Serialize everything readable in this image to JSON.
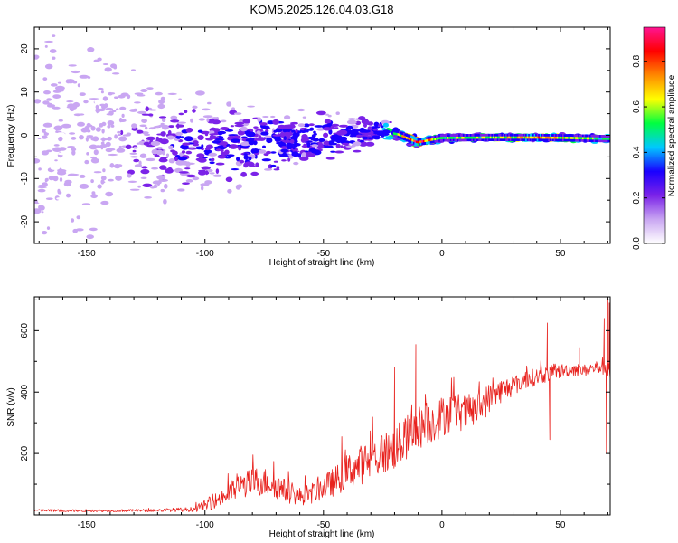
{
  "figure_title": "KOM5.2025.126.04.03.G18",
  "chart_data": [
    {
      "type": "heatmap",
      "title": "KOM5.2025.126.04.03.G18",
      "xlabel": "Height of straight line (km)",
      "ylabel": "Frequency (Hz)",
      "xlim": [
        -172,
        71
      ],
      "ylim": [
        -25,
        25
      ],
      "x_ticks": [
        -150,
        -100,
        -50,
        0,
        50
      ],
      "y_ticks": [
        -20,
        -10,
        0,
        10,
        20
      ],
      "x_tick_labels": [
        "-150",
        "-100",
        "-50",
        "0",
        "50"
      ],
      "y_tick_labels": [
        "-20",
        "-10",
        "0",
        "10",
        "20"
      ],
      "grid": false,
      "colorbar": {
        "label": "Normalized spectral amplitude",
        "range": [
          0,
          0.95
        ],
        "ticks": [
          0.0,
          0.2,
          0.4,
          0.6,
          0.8
        ],
        "tick_labels": [
          "0.0",
          "0.2",
          "0.4",
          "0.6",
          "0.8"
        ],
        "colors": [
          "#ffffff",
          "#c9a6f2",
          "#7b22e8",
          "#1a00ff",
          "#00c8ff",
          "#00ff40",
          "#ffff00",
          "#ff8800",
          "#ff0000",
          "#ff1493"
        ]
      },
      "ridge": [
        {
          "x": -172,
          "y": 0,
          "spread": 24,
          "amp": 0.08
        },
        {
          "x": -140,
          "y": 0,
          "spread": 18,
          "amp": 0.1
        },
        {
          "x": -110,
          "y": -3,
          "spread": 9,
          "amp": 0.22
        },
        {
          "x": -80,
          "y": -2,
          "spread": 7,
          "amp": 0.28
        },
        {
          "x": -60,
          "y": -1,
          "spread": 5,
          "amp": 0.3
        },
        {
          "x": -40,
          "y": 0,
          "spread": 3.5,
          "amp": 0.32
        },
        {
          "x": -25,
          "y": 1,
          "spread": 2.5,
          "amp": 0.38
        },
        {
          "x": -18,
          "y": 0.2,
          "spread": 1.2,
          "amp": 0.55
        },
        {
          "x": -10,
          "y": -1.6,
          "spread": 0.8,
          "amp": 0.85
        },
        {
          "x": 0,
          "y": -0.6,
          "spread": 0.9,
          "amp": 0.5
        },
        {
          "x": 20,
          "y": -0.5,
          "spread": 0.8,
          "amp": 0.55
        },
        {
          "x": 40,
          "y": -0.5,
          "spread": 0.8,
          "amp": 0.7
        },
        {
          "x": 55,
          "y": -0.6,
          "spread": 0.8,
          "amp": 0.58
        },
        {
          "x": 71,
          "y": -0.8,
          "spread": 0.8,
          "amp": 0.45
        }
      ]
    },
    {
      "type": "line",
      "xlabel": "Height of straight line (km)",
      "ylabel": "SNR (v/v)",
      "xlim": [
        -172,
        71
      ],
      "ylim": [
        0,
        710
      ],
      "x_ticks": [
        -150,
        -100,
        -50,
        0,
        50
      ],
      "y_ticks": [
        200,
        400,
        600
      ],
      "x_tick_labels": [
        "-150",
        "-100",
        "-50",
        "0",
        "50"
      ],
      "y_tick_labels": [
        "200",
        "400",
        "600"
      ],
      "grid": false,
      "series": [
        {
          "color": "#e8221e",
          "x": [
            -172,
            -160,
            -140,
            -120,
            -105,
            -100,
            -92,
            -85,
            -78,
            -72,
            -66,
            -60,
            -55,
            -50,
            -45,
            -40,
            -35,
            -30,
            -25,
            -20,
            -15,
            -10,
            -5,
            0,
            5,
            10,
            15,
            20,
            25,
            30,
            35,
            40,
            45,
            50,
            55,
            60,
            65,
            68,
            70,
            71
          ],
          "y": [
            15,
            14,
            14,
            15,
            18,
            30,
            60,
            95,
            110,
            105,
            78,
            60,
            70,
            90,
            110,
            140,
            160,
            180,
            200,
            215,
            250,
            285,
            300,
            320,
            340,
            330,
            345,
            380,
            405,
            420,
            440,
            450,
            460,
            468,
            475,
            470,
            480,
            485,
            480,
            470
          ],
          "noise": [
            4,
            4,
            4,
            5,
            8,
            18,
            30,
            42,
            48,
            46,
            38,
            30,
            34,
            40,
            48,
            58,
            64,
            68,
            72,
            72,
            74,
            72,
            70,
            68,
            62,
            60,
            56,
            50,
            40,
            34,
            30,
            28,
            26,
            24,
            22,
            20,
            22,
            30,
            40,
            40
          ],
          "spikes": [
            {
              "x": -11,
              "y": 555
            },
            {
              "x": -20,
              "y": 480
            },
            {
              "x": 44.5,
              "y": 625
            },
            {
              "x": 45.5,
              "y": 245
            },
            {
              "x": 58,
              "y": 545
            },
            {
              "x": 68.5,
              "y": 640
            },
            {
              "x": 69.4,
              "y": 200
            },
            {
              "x": 70,
              "y": 705
            },
            {
              "x": 70.6,
              "y": 690
            }
          ]
        }
      ]
    }
  ]
}
